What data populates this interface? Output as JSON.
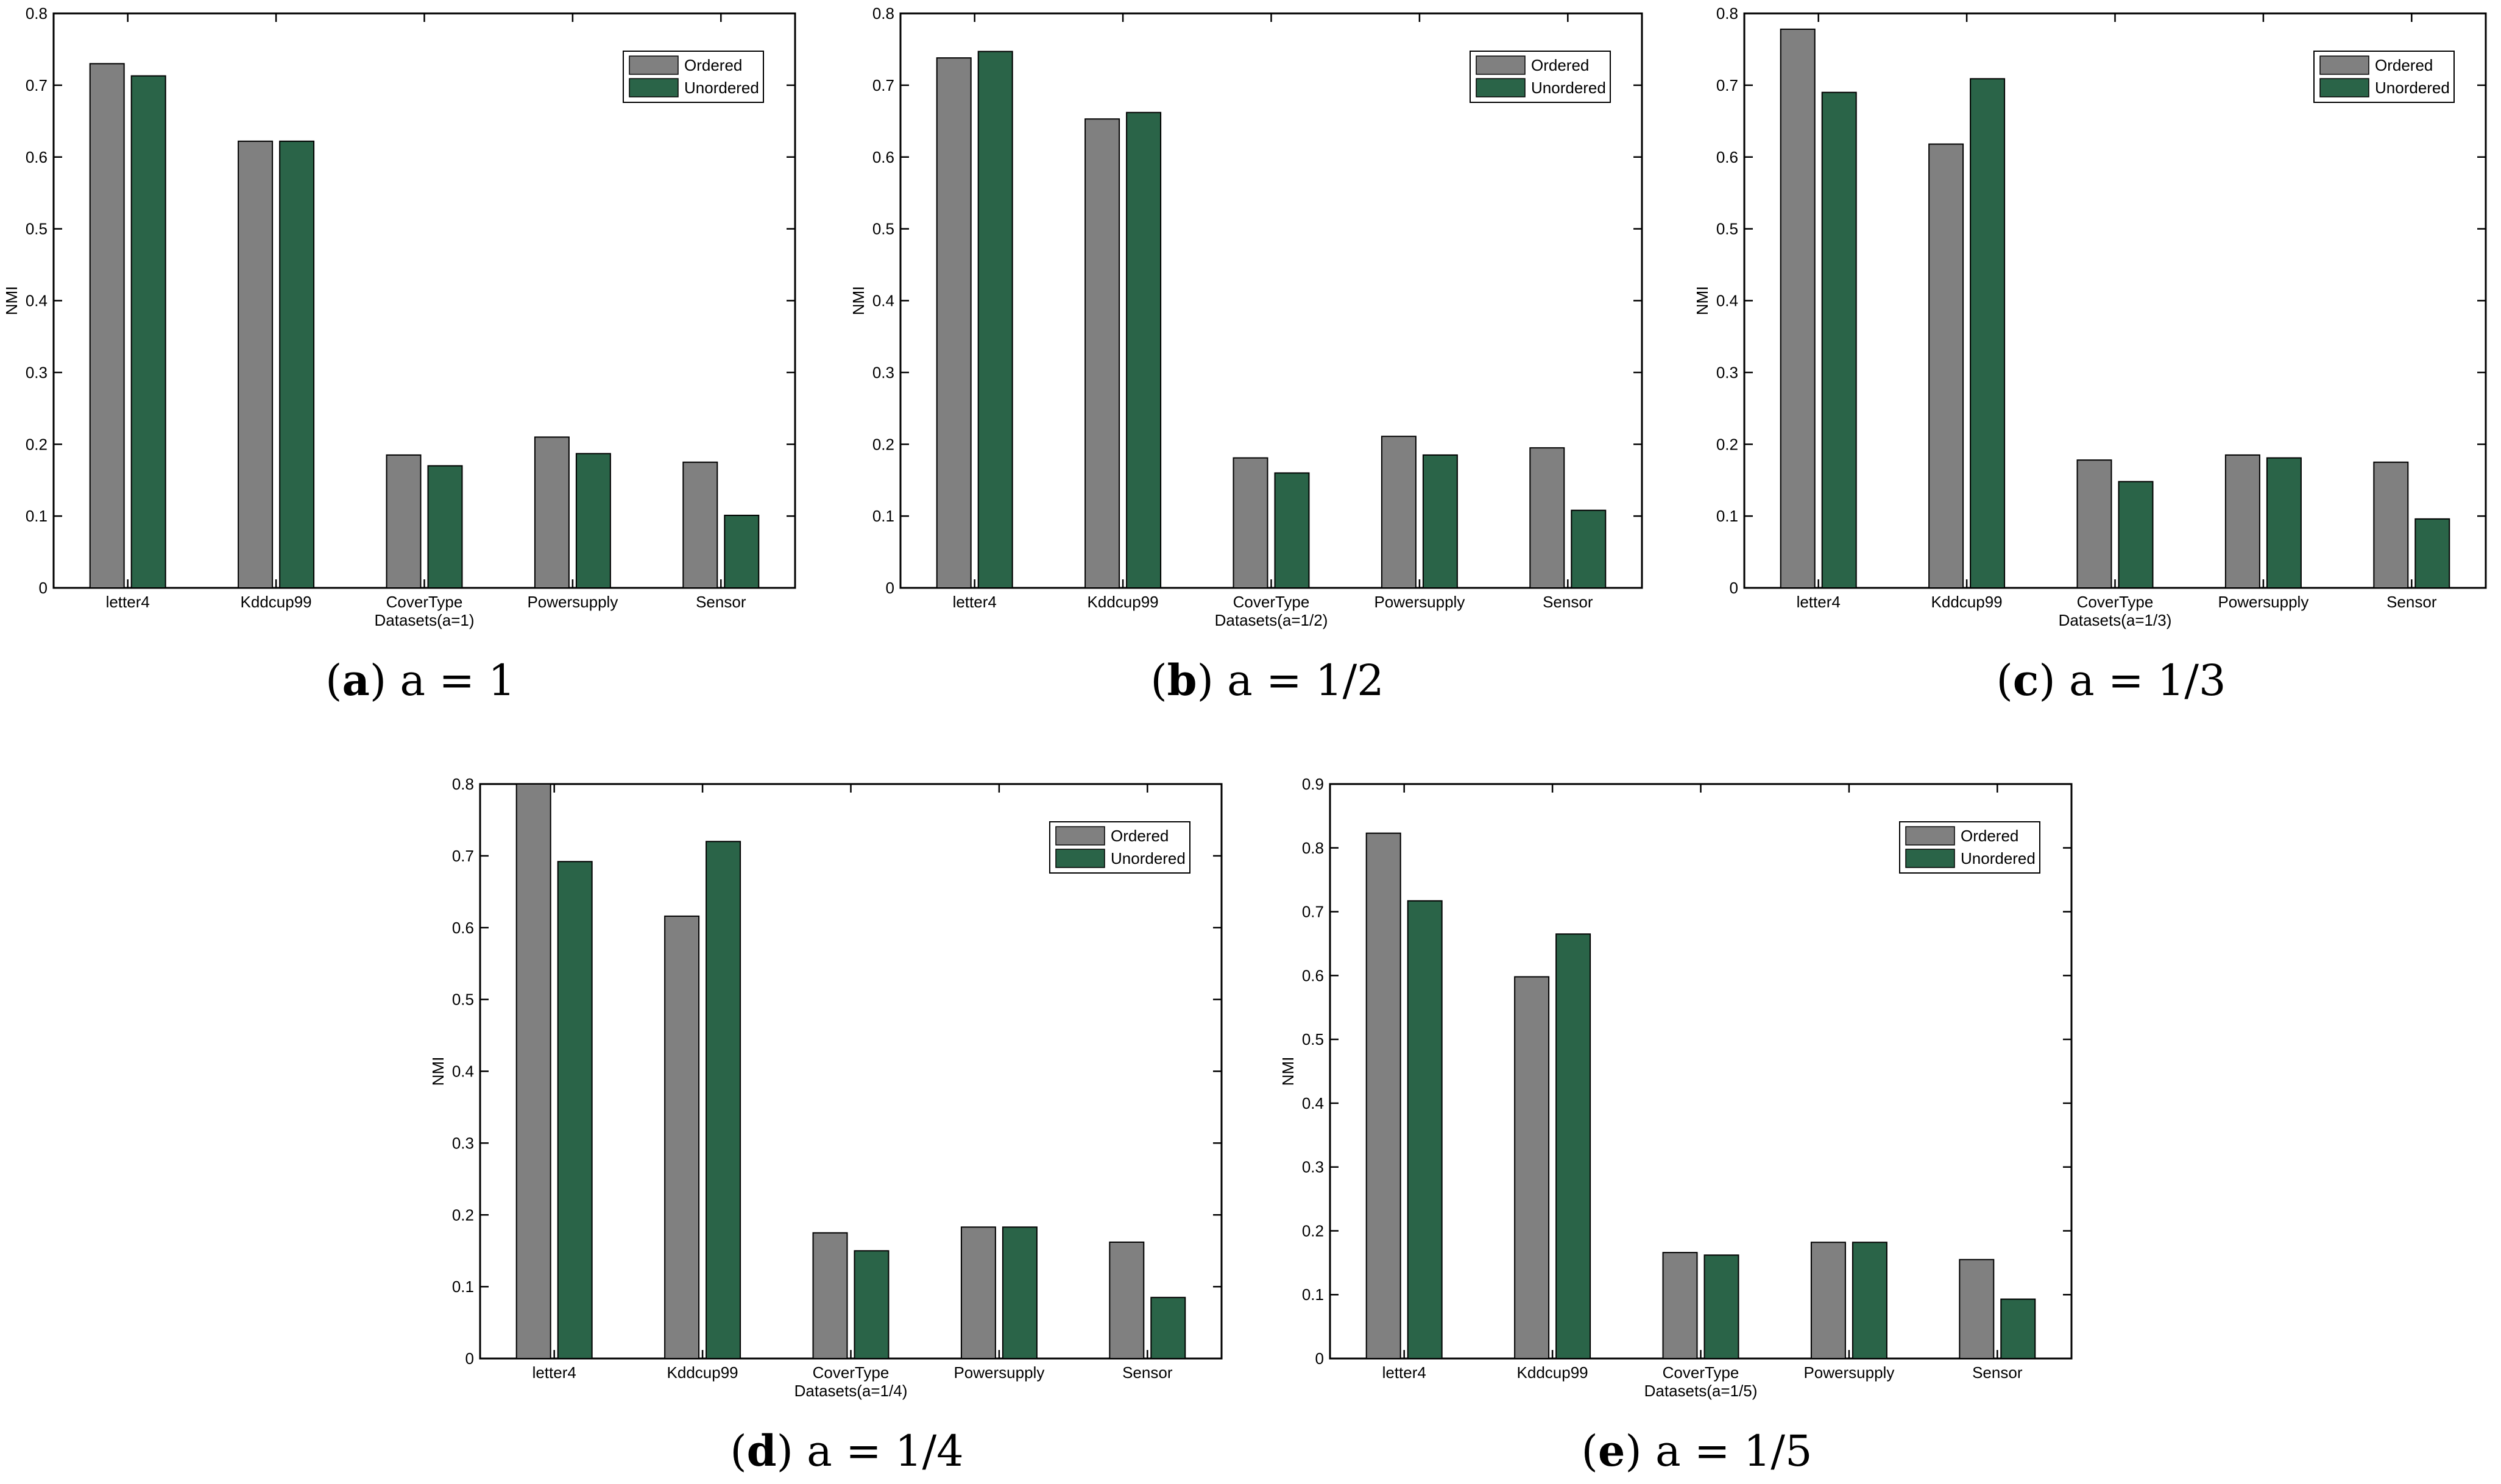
{
  "figure": {
    "legend_ordered": "Ordered",
    "legend_unordered": "Unordered",
    "colors": {
      "ordered": "#808080",
      "unordered": "#2a6448"
    }
  },
  "chart_data": [
    {
      "type": "bar",
      "panel_label": "a",
      "caption": "a = 1",
      "categories": [
        "letter4",
        "Kddcup99",
        "CoverType",
        "Powersupply",
        "Sensor"
      ],
      "series": [
        {
          "name": "Ordered",
          "values": [
            0.73,
            0.622,
            0.185,
            0.21,
            0.175
          ]
        },
        {
          "name": "Unordered",
          "values": [
            0.713,
            0.622,
            0.17,
            0.187,
            0.101
          ]
        }
      ],
      "xlabel": "Datasets(a=1)",
      "ylabel": "NMI",
      "ylim": [
        0,
        0.8
      ],
      "yticks": [
        "0",
        "0.1",
        "0.2",
        "0.3",
        "0.4",
        "0.5",
        "0.6",
        "0.7",
        "0.8"
      ],
      "legend_position": "top-right"
    },
    {
      "type": "bar",
      "panel_label": "b",
      "caption": "a = 1/2",
      "categories": [
        "letter4",
        "Kddcup99",
        "CoverType",
        "Powersupply",
        "Sensor"
      ],
      "series": [
        {
          "name": "Ordered",
          "values": [
            0.738,
            0.653,
            0.181,
            0.211,
            0.195
          ]
        },
        {
          "name": "Unordered",
          "values": [
            0.747,
            0.662,
            0.16,
            0.185,
            0.108
          ]
        }
      ],
      "xlabel": "Datasets(a=1/2)",
      "ylabel": "NMI",
      "ylim": [
        0,
        0.8
      ],
      "yticks": [
        "0",
        "0.1",
        "0.2",
        "0.3",
        "0.4",
        "0.5",
        "0.6",
        "0.7",
        "0.8"
      ],
      "legend_position": "top-right"
    },
    {
      "type": "bar",
      "panel_label": "c",
      "caption": "a = 1/3",
      "categories": [
        "letter4",
        "Kddcup99",
        "CoverType",
        "Powersupply",
        "Sensor"
      ],
      "series": [
        {
          "name": "Ordered",
          "values": [
            0.778,
            0.618,
            0.178,
            0.185,
            0.175
          ]
        },
        {
          "name": "Unordered",
          "values": [
            0.69,
            0.709,
            0.148,
            0.181,
            0.096
          ]
        }
      ],
      "xlabel": "Datasets(a=1/3)",
      "ylabel": "NMI",
      "ylim": [
        0,
        0.8
      ],
      "yticks": [
        "0",
        "0.1",
        "0.2",
        "0.3",
        "0.4",
        "0.5",
        "0.6",
        "0.7",
        "0.8"
      ],
      "legend_position": "top-right"
    },
    {
      "type": "bar",
      "panel_label": "d",
      "caption": "a = 1/4",
      "categories": [
        "letter4",
        "Kddcup99",
        "CoverType",
        "Powersupply",
        "Sensor"
      ],
      "series": [
        {
          "name": "Ordered",
          "values": [
            0.8,
            0.616,
            0.175,
            0.183,
            0.162
          ]
        },
        {
          "name": "Unordered",
          "values": [
            0.692,
            0.72,
            0.15,
            0.183,
            0.085
          ]
        }
      ],
      "xlabel": "Datasets(a=1/4)",
      "ylabel": "NMI",
      "ylim": [
        0,
        0.8
      ],
      "yticks": [
        "0",
        "0.1",
        "0.2",
        "0.3",
        "0.4",
        "0.5",
        "0.6",
        "0.7",
        "0.8"
      ],
      "legend_position": "top-right"
    },
    {
      "type": "bar",
      "panel_label": "e",
      "caption": "a = 1/5",
      "categories": [
        "letter4",
        "Kddcup99",
        "CoverType",
        "Powersupply",
        "Sensor"
      ],
      "series": [
        {
          "name": "Ordered",
          "values": [
            0.823,
            0.598,
            0.166,
            0.182,
            0.155
          ]
        },
        {
          "name": "Unordered",
          "values": [
            0.717,
            0.665,
            0.162,
            0.182,
            0.093
          ]
        }
      ],
      "xlabel": "Datasets(a=1/5)",
      "ylabel": "NMI",
      "ylim": [
        0,
        0.9
      ],
      "yticks": [
        "0",
        "0.1",
        "0.2",
        "0.3",
        "0.4",
        "0.5",
        "0.6",
        "0.7",
        "0.8",
        "0.9"
      ],
      "legend_position": "top-right"
    }
  ]
}
